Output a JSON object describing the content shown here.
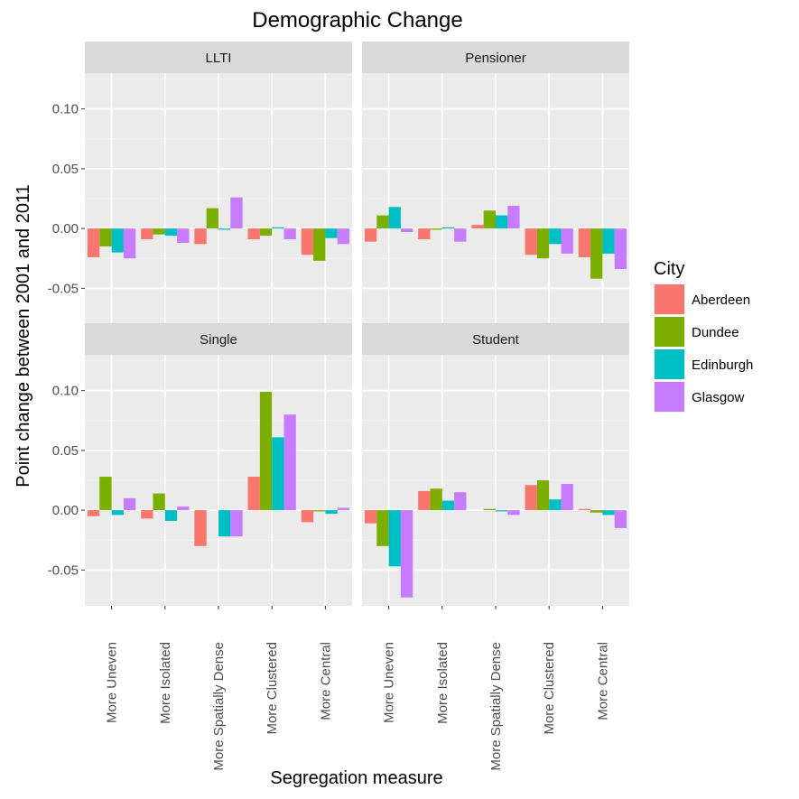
{
  "chart_data": {
    "type": "bar",
    "title": "Demographic Change",
    "xlabel": "Segregation measure",
    "ylabel": "Point change between 2001 and 2011",
    "ylim": [
      -0.08,
      0.13
    ],
    "yticks": [
      "-0.05",
      "0.00",
      "0.05",
      "0.10"
    ],
    "ytick_values": [
      -0.05,
      0,
      0.05,
      0.1
    ],
    "grid": true,
    "legend_position": "right",
    "categories": [
      "More Uneven",
      "More Isolated",
      "More Spatially Dense",
      "More Clustered",
      "More Central"
    ],
    "legend": {
      "title": "City",
      "items": [
        {
          "name": "Aberdeen",
          "color": "#F8766D"
        },
        {
          "name": "Dundee",
          "color": "#7CAE00"
        },
        {
          "name": "Edinburgh",
          "color": "#00BFC4"
        },
        {
          "name": "Glasgow",
          "color": "#C77CFF"
        }
      ]
    },
    "panels": [
      {
        "name": "LLTI",
        "series": [
          {
            "name": "Aberdeen",
            "values": [
              -0.024,
              -0.009,
              -0.013,
              -0.009,
              -0.022
            ]
          },
          {
            "name": "Dundee",
            "values": [
              -0.015,
              -0.005,
              0.017,
              -0.006,
              -0.027
            ]
          },
          {
            "name": "Edinburgh",
            "values": [
              -0.02,
              -0.006,
              -0.001,
              0.001,
              -0.008
            ]
          },
          {
            "name": "Glasgow",
            "values": [
              -0.025,
              -0.012,
              0.026,
              -0.009,
              -0.013
            ]
          }
        ]
      },
      {
        "name": "Pensioner",
        "series": [
          {
            "name": "Aberdeen",
            "values": [
              -0.011,
              -0.009,
              0.003,
              -0.022,
              -0.024
            ]
          },
          {
            "name": "Dundee",
            "values": [
              0.011,
              -0.001,
              0.015,
              -0.025,
              -0.042
            ]
          },
          {
            "name": "Edinburgh",
            "values": [
              0.018,
              0.001,
              0.011,
              -0.013,
              -0.021
            ]
          },
          {
            "name": "Glasgow",
            "values": [
              -0.003,
              -0.011,
              0.019,
              -0.021,
              -0.034
            ]
          }
        ]
      },
      {
        "name": "Single",
        "series": [
          {
            "name": "Aberdeen",
            "values": [
              -0.005,
              -0.007,
              -0.03,
              0.028,
              -0.01
            ]
          },
          {
            "name": "Dundee",
            "values": [
              0.028,
              0.014,
              0.0,
              0.099,
              -0.001
            ]
          },
          {
            "name": "Edinburgh",
            "values": [
              -0.004,
              -0.009,
              -0.022,
              0.061,
              -0.003
            ]
          },
          {
            "name": "Glasgow",
            "values": [
              0.01,
              0.003,
              -0.022,
              0.08,
              0.002
            ]
          }
        ]
      },
      {
        "name": "Student",
        "series": [
          {
            "name": "Aberdeen",
            "values": [
              -0.011,
              0.016,
              0.0,
              0.021,
              0.001
            ]
          },
          {
            "name": "Dundee",
            "values": [
              -0.03,
              0.018,
              0.001,
              0.025,
              -0.002
            ]
          },
          {
            "name": "Edinburgh",
            "values": [
              -0.047,
              0.008,
              -0.001,
              0.009,
              -0.004
            ]
          },
          {
            "name": "Glasgow",
            "values": [
              -0.073,
              0.015,
              -0.004,
              0.022,
              -0.015
            ]
          }
        ]
      }
    ]
  }
}
